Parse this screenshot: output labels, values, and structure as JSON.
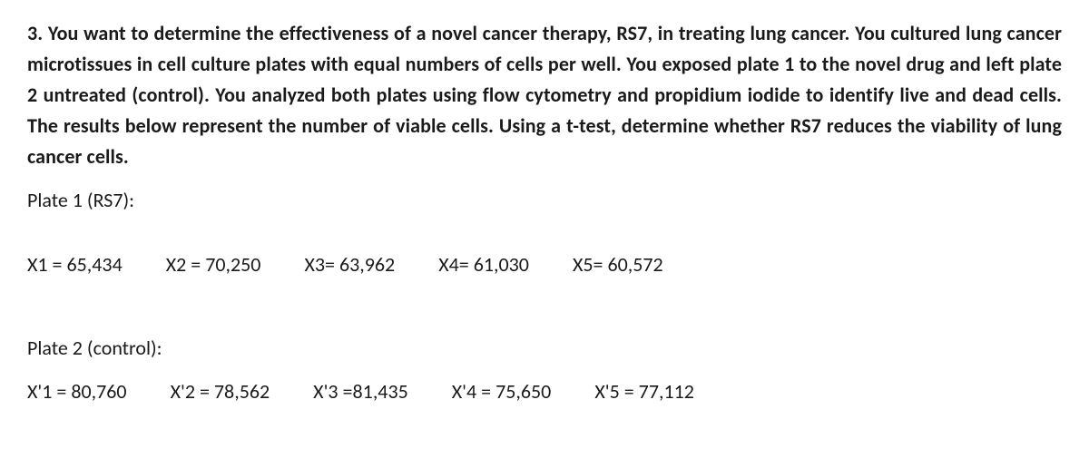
{
  "question_text": "3. You want to determine the effectiveness of a novel cancer therapy, RS7, in treating lung cancer. You cultured lung cancer microtissues in cell culture plates with equal numbers of cells per well. You exposed plate 1 to the novel drug and left plate 2 untreated (control). You analyzed both plates using flow cytometry and propidium iodide to identify live and dead cells. The results below represent the number of viable cells. Using a t-test, determine whether RS7 reduces the viability of lung cancer cells.",
  "plate1": {
    "label": "Plate 1 (RS7):",
    "items": [
      "X1 = 65,434",
      "X2 = 70,250",
      "X3= 63,962",
      "X4= 61,030",
      "X5= 60,572"
    ]
  },
  "plate2": {
    "label": "Plate 2 (control):",
    "items": [
      "X'1 = 80,760",
      "X'2 = 78,562",
      "X'3 =81,435",
      "X'4 = 75,650",
      "X'5 = 77,112"
    ]
  },
  "colors": {
    "text": "#1a1a1a",
    "background": "#ffffff"
  },
  "typography": {
    "font_family": "Calibri",
    "body_fontsize_pt": 17,
    "question_weight": 700,
    "data_weight": 400
  }
}
